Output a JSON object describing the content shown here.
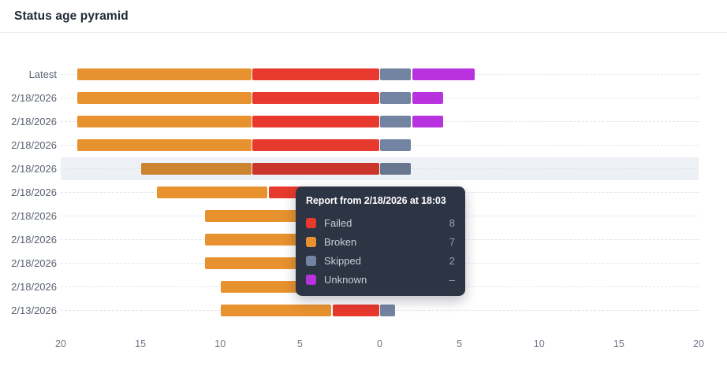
{
  "header": {
    "title": "Status age pyramid"
  },
  "chart_data": {
    "type": "bar",
    "variant": "horizontal-stacked-pyramid",
    "title": "Status age pyramid",
    "categories": [
      "Latest",
      "2/18/2026",
      "2/18/2026",
      "2/18/2026",
      "2/18/2026",
      "2/18/2026",
      "2/18/2026",
      "2/18/2026",
      "2/18/2026",
      "2/18/2026",
      "2/13/2026"
    ],
    "series": [
      {
        "name": "Broken",
        "side": "left",
        "color": "#e8922f",
        "values": [
          11,
          11,
          11,
          11,
          7,
          7,
          7,
          7,
          7,
          7,
          7
        ]
      },
      {
        "name": "Failed",
        "side": "left",
        "color": "#e7392e",
        "values": [
          8,
          8,
          8,
          8,
          8,
          7,
          4,
          4,
          4,
          3,
          3
        ]
      },
      {
        "name": "Skipped",
        "side": "right",
        "color": "#7383a2",
        "values": [
          2,
          2,
          2,
          2,
          2,
          1,
          1,
          1,
          1,
          1,
          1
        ]
      },
      {
        "name": "Unknown",
        "side": "right",
        "color": "#b832e0",
        "values": [
          4,
          2,
          2,
          0,
          0,
          0,
          0,
          0,
          0,
          0,
          0
        ]
      }
    ],
    "x_ticks": [
      "20",
      "15",
      "10",
      "5",
      "0",
      "5",
      "10",
      "15",
      "20"
    ],
    "x_max_per_side": 20,
    "grid": "dashed-row-lines",
    "highlight_row_index": 4,
    "highlight_color": "#edf0f5"
  },
  "tooltip": {
    "title": "Report from 2/18/2026 at 18:03",
    "rows": [
      {
        "label": "Failed",
        "value": "8",
        "color": "#e7392e"
      },
      {
        "label": "Broken",
        "value": "7",
        "color": "#e8922f"
      },
      {
        "label": "Skipped",
        "value": "2",
        "color": "#7383a2"
      },
      {
        "label": "Unknown",
        "value": "–",
        "color": "#b832e0"
      }
    ]
  }
}
